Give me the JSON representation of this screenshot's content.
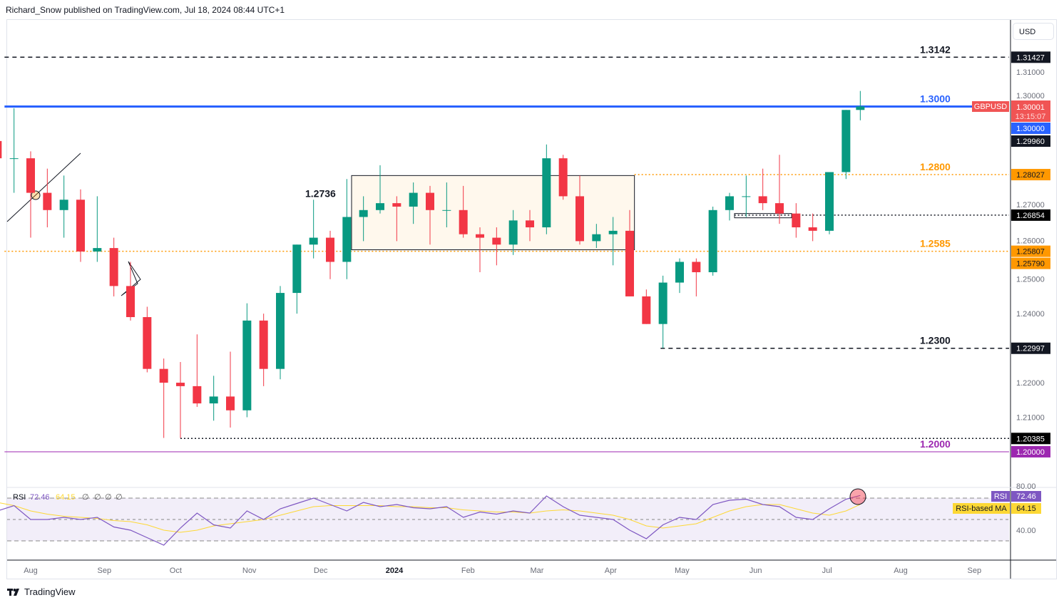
{
  "header": {
    "text": "Richard_Snow published on TradingView.com, Jul 18, 2024 08:44 UTC+1"
  },
  "footer": {
    "brand": "TradingView"
  },
  "currency": "USD",
  "colors": {
    "up": "#089981",
    "down": "#f23645",
    "blue": "#2962ff",
    "orange": "#ff9800",
    "purple": "#9c27b0",
    "rsi": "#7e57c2",
    "rsi_ma": "#fdd835"
  },
  "chart_data": [
    {
      "type": "candlestick",
      "symbol": "GBPUSD",
      "ylim": [
        1.19,
        1.325
      ],
      "y_ticks": [
        "1.31000",
        "1.30000",
        "1.27000",
        "1.26000",
        "1.25000",
        "1.24000",
        "1.22000",
        "1.21000"
      ],
      "x_ticks": [
        "Aug",
        "Sep",
        "Oct",
        "Nov",
        "Dec",
        "2024",
        "Feb",
        "Mar",
        "Apr",
        "May",
        "Jun",
        "Jul",
        "Aug",
        "Sep"
      ],
      "x_tick_dates": [
        "2023-08-01",
        "2023-09-01",
        "2023-10-01",
        "2023-11-01",
        "2023-12-01",
        "2024-01-01",
        "2024-02-01",
        "2024-03-01",
        "2024-04-01",
        "2024-05-01",
        "2024-06-01",
        "2024-07-01",
        "2024-08-01",
        "2024-09-01"
      ],
      "candles": [
        [
          "2023-07-21",
          1.29,
          1.298,
          1.284,
          1.285
        ],
        [
          "2023-07-28",
          1.285,
          1.2995,
          1.275,
          1.285
        ],
        [
          "2023-08-04",
          1.285,
          1.287,
          1.262,
          1.275
        ],
        [
          "2023-08-11",
          1.275,
          1.282,
          1.265,
          1.27
        ],
        [
          "2023-08-18",
          1.27,
          1.28,
          1.262,
          1.273
        ],
        [
          "2023-08-25",
          1.273,
          1.276,
          1.255,
          1.258
        ],
        [
          "2023-09-01",
          1.258,
          1.274,
          1.255,
          1.259
        ],
        [
          "2023-09-08",
          1.259,
          1.262,
          1.245,
          1.248
        ],
        [
          "2023-09-15",
          1.248,
          1.255,
          1.238,
          1.239
        ],
        [
          "2023-09-22",
          1.239,
          1.242,
          1.223,
          1.224
        ],
        [
          "2023-09-29",
          1.224,
          1.227,
          1.204,
          1.22
        ],
        [
          "2023-10-06",
          1.22,
          1.226,
          1.204,
          1.219
        ],
        [
          "2023-10-13",
          1.219,
          1.234,
          1.213,
          1.214
        ],
        [
          "2023-10-20",
          1.214,
          1.222,
          1.209,
          1.216
        ],
        [
          "2023-10-27",
          1.216,
          1.229,
          1.207,
          1.212
        ],
        [
          "2023-11-03",
          1.212,
          1.243,
          1.21,
          1.238
        ],
        [
          "2023-11-10",
          1.238,
          1.24,
          1.219,
          1.224
        ],
        [
          "2023-11-17",
          1.224,
          1.248,
          1.221,
          1.246
        ],
        [
          "2023-11-24",
          1.246,
          1.26,
          1.24,
          1.26
        ],
        [
          "2023-12-01",
          1.26,
          1.273,
          1.256,
          1.262
        ],
        [
          "2023-12-08",
          1.262,
          1.264,
          1.25,
          1.255
        ],
        [
          "2023-12-15",
          1.255,
          1.279,
          1.25,
          1.268
        ],
        [
          "2023-12-22",
          1.268,
          1.274,
          1.261,
          1.27
        ],
        [
          "2023-12-29",
          1.27,
          1.283,
          1.269,
          1.272
        ],
        [
          "2024-01-05",
          1.272,
          1.274,
          1.261,
          1.271
        ],
        [
          "2024-01-12",
          1.271,
          1.278,
          1.266,
          1.275
        ],
        [
          "2024-01-19",
          1.275,
          1.277,
          1.26,
          1.27
        ],
        [
          "2024-01-26",
          1.27,
          1.278,
          1.265,
          1.27
        ],
        [
          "2024-02-02",
          1.27,
          1.277,
          1.262,
          1.263
        ],
        [
          "2024-02-09",
          1.263,
          1.265,
          1.252,
          1.262
        ],
        [
          "2024-02-16",
          1.262,
          1.265,
          1.254,
          1.26
        ],
        [
          "2024-02-23",
          1.26,
          1.27,
          1.257,
          1.267
        ],
        [
          "2024-03-01",
          1.267,
          1.27,
          1.261,
          1.265
        ],
        [
          "2024-03-08",
          1.265,
          1.289,
          1.263,
          1.285
        ],
        [
          "2024-03-15",
          1.285,
          1.286,
          1.273,
          1.274
        ],
        [
          "2024-03-22",
          1.274,
          1.28,
          1.26,
          1.261
        ],
        [
          "2024-03-29",
          1.261,
          1.266,
          1.259,
          1.263
        ],
        [
          "2024-04-05",
          1.263,
          1.268,
          1.254,
          1.264
        ],
        [
          "2024-04-12",
          1.264,
          1.27,
          1.245,
          1.245
        ],
        [
          "2024-04-19",
          1.245,
          1.247,
          1.237,
          1.237
        ],
        [
          "2024-04-26",
          1.237,
          1.251,
          1.23,
          1.249
        ],
        [
          "2024-05-03",
          1.249,
          1.256,
          1.246,
          1.255
        ],
        [
          "2024-05-10",
          1.255,
          1.256,
          1.245,
          1.252
        ],
        [
          "2024-05-17",
          1.252,
          1.271,
          1.251,
          1.27
        ],
        [
          "2024-05-24",
          1.27,
          1.275,
          1.267,
          1.274
        ],
        [
          "2024-05-31",
          1.274,
          1.28,
          1.268,
          1.274
        ],
        [
          "2024-06-07",
          1.274,
          1.282,
          1.27,
          1.272
        ],
        [
          "2024-06-14",
          1.272,
          1.286,
          1.266,
          1.269
        ],
        [
          "2024-06-21",
          1.269,
          1.272,
          1.262,
          1.265
        ],
        [
          "2024-06-28",
          1.265,
          1.269,
          1.261,
          1.264
        ],
        [
          "2024-07-05",
          1.264,
          1.281,
          1.263,
          1.281
        ],
        [
          "2024-07-12",
          1.281,
          1.299,
          1.279,
          1.299
        ],
        [
          "2024-07-18",
          1.299,
          1.3045,
          1.296,
          1.3
        ]
      ],
      "levels": [
        {
          "label": "1.3142",
          "price": 1.31427,
          "tag": "1.31427",
          "style": "dashed",
          "color": "#131722",
          "from": "2023-07-21"
        },
        {
          "label": "1.3000",
          "price": 1.3,
          "tag": "1.30000",
          "style": "solid",
          "color": "#2962ff",
          "from": "2023-07-21"
        },
        {
          "label": "1.2800",
          "price": 1.28027,
          "tag": "1.28027",
          "style": "dotted",
          "color": "#ff9800",
          "from": "2024-04-11"
        },
        {
          "label": "",
          "price": 1.26854,
          "tag": "1.26854",
          "style": "dotted",
          "color": "#131722",
          "from": "2024-05-23"
        },
        {
          "label": "1.2585",
          "price": 1.25807,
          "tag": "1.25807",
          "style": "dotted",
          "color": "#ff9800",
          "from": "2023-07-21"
        },
        {
          "label": "1.2300",
          "price": 1.22997,
          "tag": "1.22997",
          "style": "dashed",
          "color": "#131722",
          "from": "2024-04-22"
        },
        {
          "label": "",
          "price": 1.20385,
          "tag": "1.20385",
          "style": "dotted",
          "color": "#131722",
          "from": "2023-10-03"
        },
        {
          "label": "1.2000",
          "price": 1.2,
          "tag": "1.20000",
          "style": "solid",
          "color": "#9c27b0",
          "from": "2023-07-21"
        }
      ],
      "range_box": {
        "label": "1.2736",
        "from": "2023-12-14",
        "to": "2024-04-11",
        "top": 1.28,
        "bottom": 1.2585
      },
      "extra_tags": [
        "1.25790",
        "1.29960"
      ],
      "last_price": {
        "symbol": "GBPUSD",
        "value": "1.30001",
        "countdown": "13:15:07",
        "blue_tag": "1.30000"
      }
    },
    {
      "type": "line",
      "title": "RSI",
      "legend": {
        "name": "RSI",
        "rsi": "72.46",
        "ma": "64.15",
        "extras": [
          "∅",
          "∅",
          "∅",
          "∅"
        ]
      },
      "ylim": [
        20,
        90
      ],
      "bands": [
        70,
        50,
        30
      ],
      "y_ticks": [
        "80.00",
        "40.00"
      ],
      "tags": {
        "rsi_label": "RSI",
        "rsi": "72.46",
        "ma_label": "RSI-based MA",
        "ma": "64.15"
      },
      "rsi": [
        58,
        63,
        50,
        50,
        52,
        50,
        52,
        43,
        40,
        33,
        26,
        42,
        56,
        45,
        42,
        58,
        50,
        60,
        65,
        70,
        64,
        58,
        66,
        62,
        64,
        61,
        60,
        62,
        52,
        57,
        55,
        58,
        56,
        72,
        62,
        54,
        52,
        50,
        40,
        32,
        45,
        52,
        50,
        64,
        68,
        69,
        64,
        62,
        52,
        50,
        60,
        69,
        72.46
      ],
      "ma": [
        66,
        63,
        58,
        55,
        53,
        52,
        51,
        49,
        48,
        45,
        40,
        38,
        40,
        44,
        46,
        48,
        50,
        54,
        58,
        62,
        63,
        63,
        63,
        63,
        62,
        62,
        61,
        61,
        59,
        58,
        57,
        57,
        56,
        58,
        59,
        58,
        56,
        54,
        50,
        44,
        42,
        44,
        46,
        52,
        58,
        62,
        64,
        64,
        60,
        56,
        54,
        58,
        64.15
      ]
    }
  ]
}
